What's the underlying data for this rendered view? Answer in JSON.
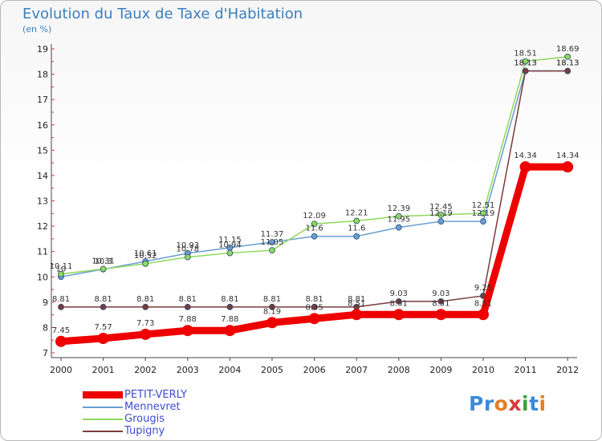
{
  "title": "Evolution du Taux de Taxe d'Habitation",
  "subtitle": "(en %)",
  "logo": {
    "text": "Proxiti",
    "letter_colors": [
      "#3b8ad9",
      "#3b8ad9",
      "#e67e22",
      "#d63a3a",
      "#3aa03a",
      "#3b8ad9",
      "#e67e22"
    ]
  },
  "chart_data": {
    "type": "line",
    "title": "Evolution du Taux de Taxe d'Habitation",
    "subtitle": "(en %)",
    "x": [
      "2000",
      "2001",
      "2002",
      "2003",
      "2004",
      "2005",
      "2006",
      "2007",
      "2008",
      "2009",
      "2010",
      "2011",
      "2012"
    ],
    "yticks": [
      "7",
      "8",
      "9",
      "10",
      "11",
      "12",
      "13",
      "14",
      "15",
      "16",
      "17",
      "18",
      "19"
    ],
    "ylim": [
      7,
      19
    ],
    "grid": false,
    "legend_position": "bottom-left",
    "series": [
      {
        "name": "PETIT-VERLY",
        "color": "#ee0000",
        "thick": true,
        "values": [
          7.45,
          7.57,
          7.73,
          7.88,
          7.88,
          8.19,
          8.35,
          8.51,
          8.51,
          8.51,
          8.51,
          14.34,
          14.34
        ],
        "labels": [
          "7.45",
          "7.57",
          "7.73",
          "7.88",
          "7.88",
          "8.19",
          "8.35",
          "8.51",
          "8.51",
          "8.51",
          "8.51",
          "14.34",
          "14.34"
        ]
      },
      {
        "name": "Mennevret",
        "color": "#6a9ed2",
        "thick": false,
        "values": [
          10.0,
          10.3,
          10.61,
          10.93,
          11.15,
          11.37,
          11.6,
          11.6,
          11.95,
          12.19,
          12.19,
          18.13,
          18.13
        ],
        "labels": [
          "10",
          "10.3",
          "10.61",
          "10.93",
          "11.15",
          "11.37",
          "11.6",
          "11.6",
          "11.95",
          "12.19",
          "12.19",
          "18.13",
          "18.13"
        ]
      },
      {
        "name": "Grougis",
        "color": "#8ed85a",
        "thick": false,
        "values": [
          10.11,
          10.31,
          10.52,
          10.78,
          10.94,
          11.05,
          12.09,
          12.21,
          12.39,
          12.45,
          12.51,
          18.51,
          18.69
        ],
        "labels": [
          "10.11",
          "10.31",
          "10.52",
          "10.78",
          "10.94",
          "11.05",
          "12.09",
          "12.21",
          "12.39",
          "12.45",
          "12.51",
          "18.51",
          "18.69"
        ]
      },
      {
        "name": "Tupigny",
        "color": "#7a3b3b",
        "thick": false,
        "values": [
          8.81,
          8.81,
          8.81,
          8.81,
          8.81,
          8.81,
          8.81,
          8.81,
          9.03,
          9.03,
          9.25,
          18.13,
          18.13
        ],
        "labels": [
          "8.81",
          "8.81",
          "8.81",
          "8.81",
          "8.81",
          "8.81",
          "8.81",
          "8.81",
          "9.03",
          "9.03",
          "9.25",
          "18.13",
          "18.13"
        ]
      }
    ]
  }
}
